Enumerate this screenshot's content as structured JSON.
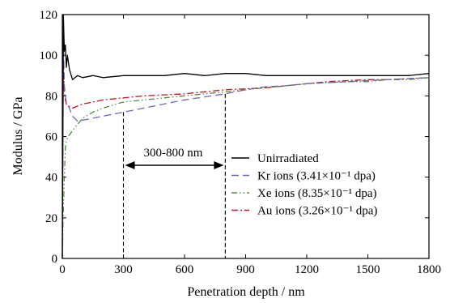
{
  "chart_data": {
    "type": "line",
    "xlabel": "Penetration depth / nm",
    "ylabel": "Modulus / GPa",
    "xlim": [
      0,
      1800
    ],
    "ylim": [
      0,
      120
    ],
    "xticks": [
      0,
      300,
      600,
      900,
      1200,
      1500,
      1800
    ],
    "yticks": [
      0,
      20,
      40,
      60,
      80,
      100,
      120
    ],
    "grid": false,
    "legend_position": "center-right",
    "annotation": {
      "text": "300-800 nm",
      "range": [
        300,
        800
      ]
    },
    "series": [
      {
        "name": "Unirradiated",
        "color": "#000000",
        "style": "solid",
        "x": [
          0,
          5,
          10,
          15,
          20,
          25,
          35,
          50,
          75,
          100,
          150,
          200,
          300,
          400,
          500,
          600,
          700,
          800,
          900,
          1000,
          1100,
          1200,
          1300,
          1400,
          1500,
          1600,
          1700,
          1800
        ],
        "y": [
          0,
          120,
          102,
          105,
          94,
          100,
          93,
          88,
          90,
          89,
          90,
          89,
          90,
          90,
          90,
          91,
          90,
          91,
          91,
          90,
          90,
          90,
          90,
          90,
          90,
          90,
          90,
          91
        ]
      },
      {
        "name": "Kr ions (3.41×10⁻¹ dpa)",
        "color": "#6a6ab0",
        "style": "dashed",
        "x": [
          0,
          5,
          10,
          15,
          20,
          30,
          50,
          75,
          100,
          150,
          200,
          300,
          400,
          500,
          600,
          700,
          800,
          900,
          1000,
          1100,
          1200,
          1300,
          1400,
          1500,
          1600,
          1700,
          1800
        ],
        "y": [
          0,
          110,
          85,
          80,
          77,
          75,
          70,
          67.5,
          68,
          69,
          70,
          72,
          74,
          76,
          78,
          79.5,
          81,
          83,
          84.5,
          85,
          86,
          86.5,
          87,
          87.5,
          88,
          88.5,
          89
        ]
      },
      {
        "name": "Xe ions (8.35×10⁻¹ dpa)",
        "color": "#4e8f3a",
        "style": "dashdotdot",
        "x": [
          0,
          5,
          10,
          15,
          20,
          30,
          50,
          75,
          100,
          150,
          200,
          300,
          400,
          500,
          600,
          700,
          800,
          900,
          1000,
          1100,
          1200,
          1300,
          1400,
          1500,
          1600,
          1700,
          1800
        ],
        "y": [
          0,
          25,
          40,
          55,
          58,
          60,
          63,
          66,
          69,
          72,
          74,
          77,
          78,
          79,
          80,
          81,
          82,
          83,
          84,
          85,
          86,
          86.5,
          87,
          87,
          88,
          88,
          89
        ]
      },
      {
        "name": "Au ions (3.26×10⁻¹ dpa)",
        "color": "#c8151e",
        "style": "dashdot",
        "x": [
          0,
          5,
          10,
          15,
          20,
          30,
          50,
          75,
          100,
          150,
          200,
          300,
          400,
          500,
          600,
          700,
          800,
          900,
          1000,
          1100,
          1200,
          1300,
          1400,
          1500,
          1600,
          1700,
          1800
        ],
        "y": [
          0,
          100,
          82,
          78,
          76,
          75,
          74,
          75,
          76,
          77,
          78,
          79,
          80,
          80.5,
          81,
          82,
          83,
          83.5,
          84,
          85,
          86,
          87,
          87.5,
          88,
          88,
          88.5,
          89
        ]
      }
    ]
  }
}
